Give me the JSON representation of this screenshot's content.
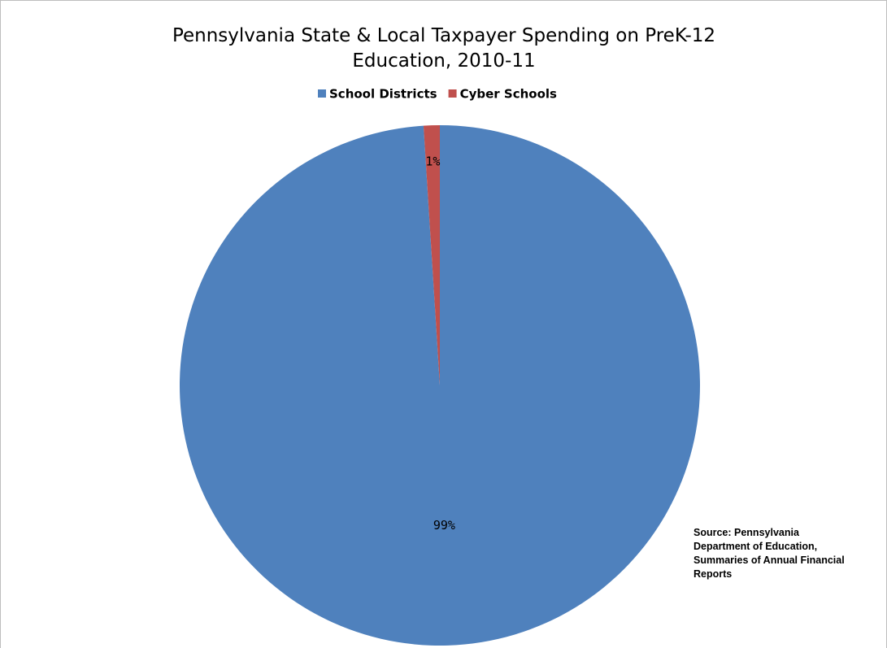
{
  "chart_data": {
    "type": "pie",
    "title": "Pennsylvania State & Local Taxpayer Spending on PreK-12 Education, 2010-11",
    "categories": [
      "School Districts",
      "Cyber Schools"
    ],
    "values": [
      99,
      1
    ],
    "value_labels": [
      "99%",
      "1%"
    ],
    "colors": [
      "#4f81bd",
      "#c0504d"
    ],
    "legend": "top",
    "annotation": "Source: Pennsylvania Department of Education, Summaries of Annual Financial Reports"
  }
}
